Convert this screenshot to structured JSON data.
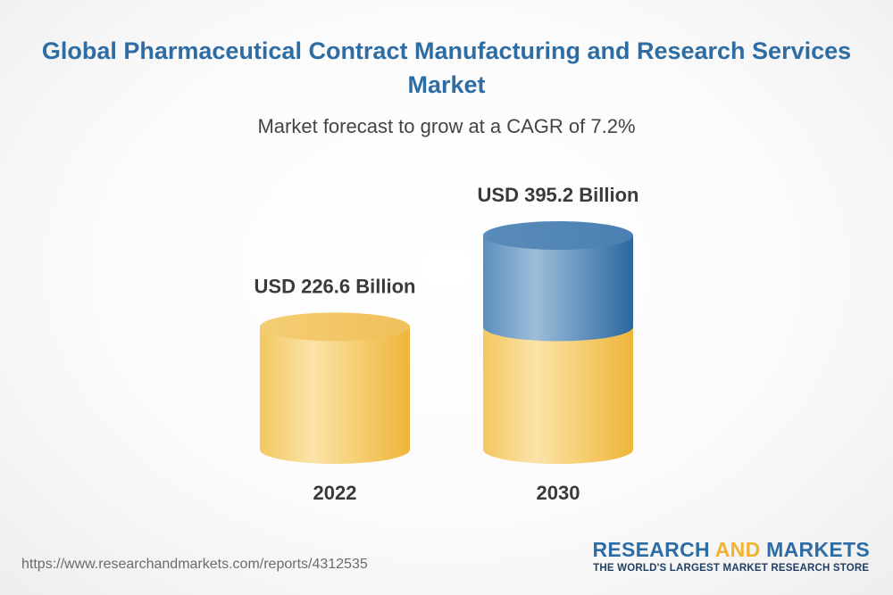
{
  "chart_data": {
    "type": "bar",
    "title_lines": [
      "Global Pharmaceutical Contract Manufacturing and Research Services",
      "Market"
    ],
    "subtitle": "Market forecast to grow at a CAGR of 7.2%",
    "categories": [
      "2022",
      "2030"
    ],
    "values": [
      226.6,
      395.2
    ],
    "data_labels": [
      "USD 226.6 Billion",
      "USD 395.2 Billion"
    ],
    "unit": "USD Billion",
    "colors": {
      "base": "#f2c35a",
      "growth": "#2e6da4"
    }
  },
  "footer": {
    "url": "https://www.researchandmarkets.com/reports/4312535",
    "brand_part1": "RESEARCH ",
    "brand_part2": "AND",
    "brand_part3": " MARKETS",
    "tagline": "THE WORLD'S LARGEST MARKET RESEARCH STORE"
  }
}
